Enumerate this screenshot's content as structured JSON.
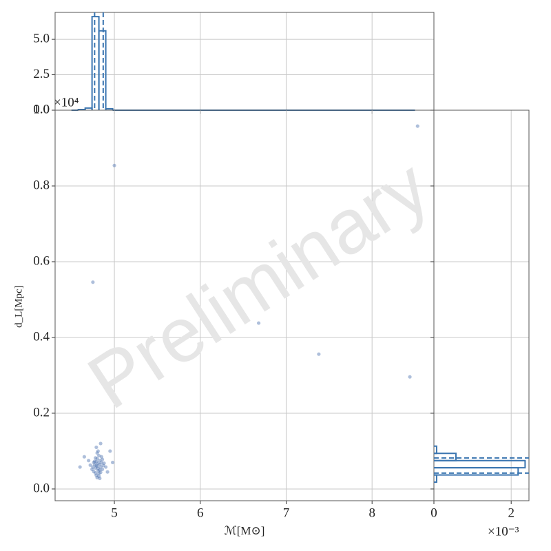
{
  "chart_data": [
    {
      "type": "histogram",
      "panel": "top",
      "bins": [
        4.5,
        4.58,
        4.66,
        4.74,
        4.82,
        4.9,
        4.98,
        8.5
      ],
      "counts": [
        0,
        0.05,
        0.15,
        6.6,
        5.6,
        0.1,
        0
      ],
      "quantiles": [
        4.77,
        4.87
      ],
      "color": "#3a75b0",
      "xlim": [
        4.31,
        8.72
      ],
      "xticks": [
        5,
        6,
        7,
        8
      ],
      "ylim": [
        0,
        6.9
      ],
      "yticks": [
        {
          "value": 0,
          "label": "0.0"
        },
        2.5,
        {
          "value": 5,
          "label": "5.0"
        }
      ],
      "grid": true
    },
    {
      "type": "scatter",
      "panel": "main",
      "xlabel": "ℳ[M⊙]",
      "ylabel": "d_L[Mpc]",
      "y_offset_label": "×10⁴",
      "watermark": "Preliminary",
      "color": "#4c72b0",
      "x": [
        4.8,
        4.78,
        4.83,
        4.81,
        4.79,
        4.84,
        4.77,
        4.82,
        4.8,
        4.86,
        4.76,
        4.83,
        4.79,
        4.81,
        4.85,
        4.78,
        4.82,
        4.8,
        4.87,
        4.75,
        4.84,
        4.77,
        4.81,
        4.79,
        4.83,
        4.86,
        4.76,
        4.8,
        4.82,
        4.78,
        4.85,
        4.81,
        4.74,
        4.88,
        4.79,
        4.83,
        4.72,
        4.9,
        4.84,
        4.7,
        4.92,
        4.6,
        4.98,
        4.65,
        4.95,
        4.75,
        5.0,
        6.68,
        7.38,
        8.44,
        8.53
      ],
      "y": [
        0.06,
        0.055,
        0.065,
        0.048,
        0.072,
        0.058,
        0.064,
        0.041,
        0.08,
        0.052,
        0.046,
        0.075,
        0.036,
        0.068,
        0.07,
        0.082,
        0.088,
        0.03,
        0.062,
        0.058,
        0.044,
        0.073,
        0.054,
        0.062,
        0.05,
        0.078,
        0.07,
        0.095,
        0.034,
        0.042,
        0.085,
        0.1,
        0.052,
        0.068,
        0.11,
        0.028,
        0.063,
        0.058,
        0.12,
        0.075,
        0.045,
        0.058,
        0.07,
        0.085,
        0.1,
        0.546,
        0.854,
        0.438,
        0.356,
        0.296,
        0.958
      ],
      "xlim": [
        4.31,
        8.72
      ],
      "xticks": [
        5,
        6,
        7,
        8
      ],
      "ylim": [
        -0.031,
        1.0
      ],
      "yticks": [
        {
          "value": 0,
          "label": "0.0"
        },
        0.2,
        0.4,
        0.6,
        0.8,
        {
          "value": 1,
          "label": "1.0"
        }
      ],
      "grid": true
    },
    {
      "type": "histogram",
      "panel": "right",
      "orientation": "horizontal",
      "x_offset_label": "×10⁻³",
      "bins": [
        0.018,
        0.037,
        0.056,
        0.075,
        0.094,
        0.113
      ],
      "counts": [
        0.07,
        2.18,
        2.36,
        0.57,
        0.07
      ],
      "quantiles": [
        0.042,
        0.082
      ],
      "color": "#3a75b0",
      "xlim": [
        0,
        2.46
      ],
      "xticks": [
        0,
        2
      ],
      "ylim": [
        -0.031,
        1.0
      ],
      "yticks": [
        0,
        0.2,
        0.4,
        0.6,
        0.8,
        1
      ],
      "grid": true
    }
  ]
}
